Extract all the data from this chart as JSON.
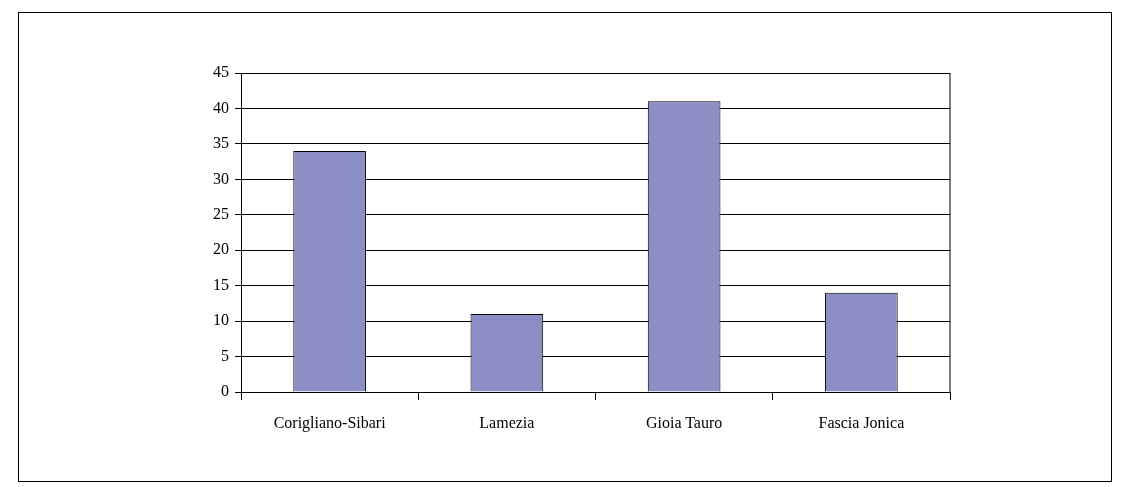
{
  "chart_data": {
    "type": "bar",
    "categories": [
      "Corigliano-Sibari",
      "Lamezia",
      "Gioia Tauro",
      "Fascia Jonica"
    ],
    "values": [
      34,
      11,
      41,
      14
    ],
    "color": "#8c8fc6",
    "ylim": [
      0,
      45
    ],
    "yticks": [
      0,
      5,
      10,
      15,
      20,
      25,
      30,
      35,
      40,
      45
    ],
    "grid": "y",
    "legend": false
  }
}
